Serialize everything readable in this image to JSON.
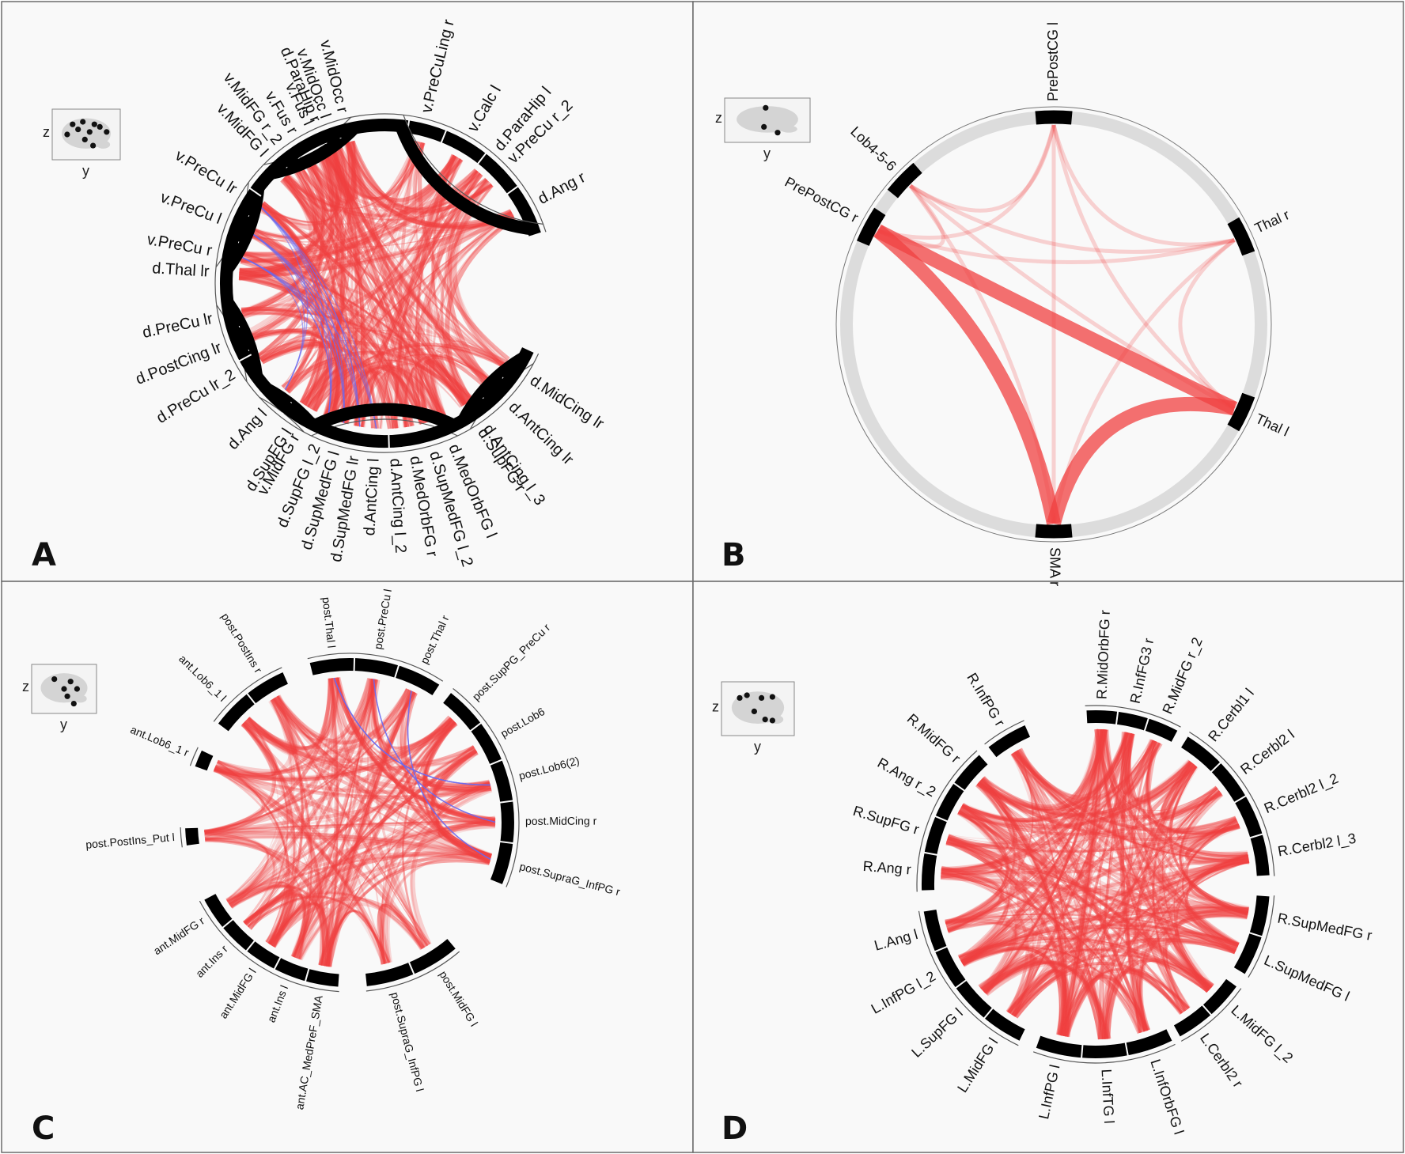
{
  "panels": [
    {
      "id": "A",
      "letter": "A",
      "axis_z": "z",
      "axis_y": "y",
      "segments": [
        {
          "labels": [
            "v.MidOcc r",
            "v.MidOcc l",
            "v.Fus l",
            "v.Fus r",
            "v.MidFG r_2",
            "v.MidFG l"
          ]
        },
        {
          "labels": [
            "v.PreCu lr",
            "v.PreCu l",
            "v.PreCu r"
          ]
        },
        {
          "labels": [
            "d.PreCu lr",
            "d.PostCing lr",
            "d.PreCu lr_2"
          ]
        },
        {
          "labels": [
            "d.Ang l",
            "d.SupFG l"
          ]
        },
        {
          "labels": [
            "d.SupFG l_2",
            "d.SupMedFG l",
            "d.SupMedFG lr",
            "d.AntCing l",
            "d.AntCing l_2",
            "d.MedOrbFG r",
            "d.SupMedFG l_2",
            "d.MedOrbFG l"
          ]
        },
        {
          "labels": [
            "d.AntCing l_3",
            "d.AntCing lr",
            "d.MidCing lr"
          ]
        },
        {
          "labels": [
            "d.SupFG r",
            "v.MidFG r",
            "d.Thal lr",
            "d.ParaHip r",
            "d.ParaHip l"
          ]
        },
        {
          "labels": [
            "d.Ang r",
            "v.PreCu r_2",
            "v.Calc l",
            "v.PreCuLing r"
          ]
        }
      ],
      "edge_colors": {
        "positive": "#f04040",
        "negative": "#6a6af0"
      }
    },
    {
      "id": "B",
      "letter": "B",
      "axis_z": "z",
      "axis_y": "y",
      "nodes": [
        "PrePostCG l",
        "Thal r",
        "Thal l",
        "SMA r",
        "PrePostCG r",
        "Lob4-5-6"
      ],
      "edge_colors": {
        "positive": "#f04040"
      }
    },
    {
      "id": "C",
      "letter": "C",
      "axis_z": "z",
      "axis_y": "y",
      "segments": [
        {
          "labels": [
            "post.Thal l",
            "post.PreCu l",
            "post.Thal r"
          ]
        },
        {
          "labels": [
            "post.SupPG_PreCu r",
            "post.Lob6",
            "post.Lob6(2)",
            "post.MidCing r",
            "post.SupraG_InfPG r"
          ]
        },
        {
          "labels": [
            "post.MidFG l",
            "post.SupraG_InfPG l"
          ]
        },
        {
          "labels": [
            "ant.AC_MedPreF_SMA",
            "ant.Ins l",
            "ant.MidFG l",
            "ant.Ins r",
            "ant.MidFG r"
          ]
        },
        {
          "labels": [
            "post.PostIns_Put l"
          ]
        },
        {
          "labels": [
            "ant.Lob6_1 r"
          ]
        },
        {
          "labels": [
            "ant.Lob6_1 l",
            "post.PostIns r"
          ]
        }
      ],
      "edge_colors": {
        "positive": "#f04040",
        "negative": "#6a6af0"
      }
    },
    {
      "id": "D",
      "letter": "D",
      "axis_z": "z",
      "axis_y": "y",
      "segments": [
        {
          "labels": [
            "R.MidOrbFG r",
            "R.InfFG3 r",
            "R.MidFG r_2"
          ]
        },
        {
          "labels": [
            "R.Cerbl1 l",
            "R.Cerbl2 l",
            "R.Cerbl2 l_2",
            "R.Cerbl2 l_3"
          ]
        },
        {
          "labels": [
            "R.SupMedFG r",
            "L.SupMedFG l"
          ]
        },
        {
          "labels": [
            "L.MidFG l_2",
            "L.Cerbl2 r"
          ]
        },
        {
          "labels": [
            "L.InfOrbFG l",
            "L.InfTG l",
            "L.InfPG l"
          ]
        },
        {
          "labels": [
            "L.MidFG l",
            "L.SupFG l",
            "L.InfPG l_2",
            "L.Ang l"
          ]
        },
        {
          "labels": [
            "R.Ang r",
            "R.SupFG r",
            "R.Ang r_2",
            "R.MidFG r"
          ]
        },
        {
          "labels": [
            "R.InfPG r"
          ]
        }
      ],
      "edge_colors": {
        "positive": "#f04040"
      }
    }
  ]
}
